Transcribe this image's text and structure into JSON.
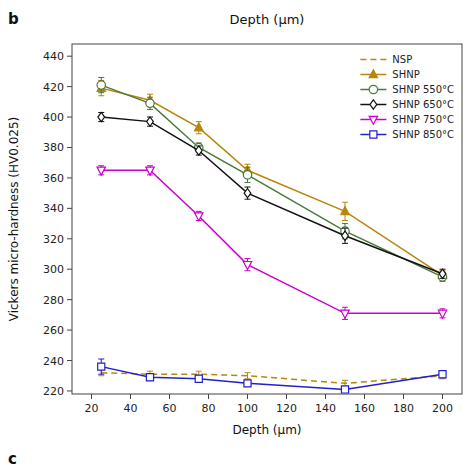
{
  "chart_data": {
    "type": "line",
    "title": "Depth (μm)",
    "annotations": [
      "b",
      "c"
    ],
    "x_label": "Depth (μm)",
    "y_label": "Vickers micro-hardness (HV0.025)",
    "xlim": [
      10,
      210
    ],
    "ylim": [
      218,
      448
    ],
    "xticks": [
      20,
      40,
      60,
      80,
      100,
      120,
      140,
      160,
      180,
      200
    ],
    "yticks": [
      220,
      240,
      260,
      280,
      300,
      320,
      340,
      360,
      380,
      400,
      420,
      440
    ],
    "x": [
      25,
      50,
      75,
      100,
      150,
      200
    ],
    "grid": false,
    "legend": "upper right",
    "series": [
      {
        "name": "NSP",
        "color": "#B8860B",
        "line_style": "dashed",
        "marker": "none",
        "values": [
          232,
          231,
          231,
          230,
          225,
          230
        ],
        "errors": [
          2,
          2,
          2,
          2,
          2,
          2
        ]
      },
      {
        "name": "SHNP",
        "color": "#B8860B",
        "line_style": "solid",
        "marker": "triangle",
        "values": [
          419,
          411,
          393,
          365,
          338,
          296
        ],
        "errors": [
          5,
          4,
          4,
          4,
          6,
          3
        ]
      },
      {
        "name": "SHNP 550°C",
        "color": "#4A7A3A",
        "line_style": "solid",
        "marker": "circle-open",
        "values": [
          421,
          409,
          380,
          362,
          325,
          295
        ],
        "errors": [
          5,
          4,
          3,
          5,
          5,
          3
        ]
      },
      {
        "name": "SHNP 650°C",
        "color": "#111111",
        "line_style": "solid",
        "marker": "diamond-open",
        "values": [
          400,
          397,
          378,
          350,
          322,
          297
        ],
        "errors": [
          3,
          3,
          3,
          4,
          5,
          3
        ]
      },
      {
        "name": "SHNP 750°C",
        "color": "#CC00CC",
        "line_style": "solid",
        "marker": "triangle-down-open",
        "values": [
          365,
          365,
          335,
          303,
          271,
          271
        ],
        "errors": [
          3,
          3,
          3,
          4,
          4,
          3
        ]
      },
      {
        "name": "SHNP 850°C",
        "color": "#2020CC",
        "line_style": "solid",
        "marker": "square-open",
        "values": [
          236,
          229,
          228,
          225,
          221,
          231
        ],
        "errors": [
          5,
          2,
          2,
          2,
          2,
          2
        ]
      }
    ]
  }
}
